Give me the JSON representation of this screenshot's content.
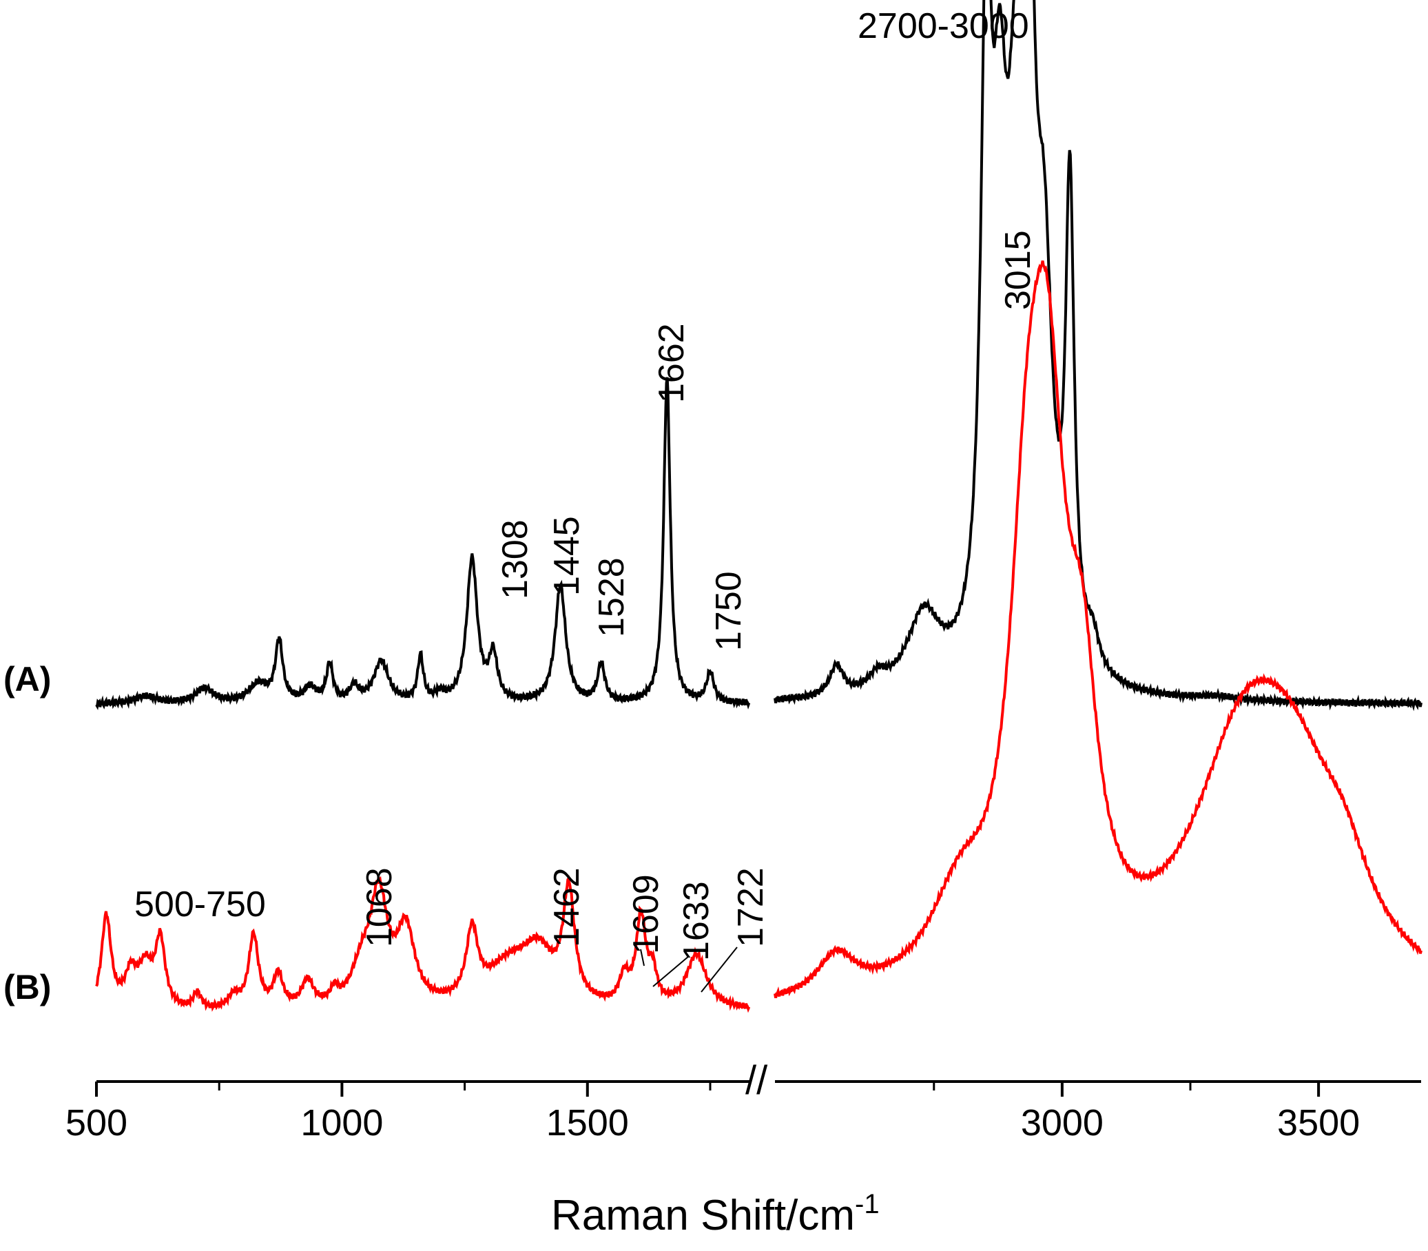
{
  "chart_data": {
    "type": "line",
    "title": "",
    "xlabel": "Raman Shift/cm",
    "xlabel_superscript": "-1",
    "ylabel": "",
    "x_segments": [
      {
        "xlim": [
          500,
          1830
        ]
      },
      {
        "xlim": [
          2440,
          3700
        ]
      }
    ],
    "x_ticks": [
      500,
      1000,
      1500,
      3000,
      3500
    ],
    "x_tick_labels": [
      "500",
      "1000",
      "1500",
      "3000",
      "3500"
    ],
    "minor_ticks": [
      750,
      1250,
      1750,
      2750,
      3250
    ],
    "axis_break": "//",
    "grid": false,
    "series": [
      {
        "name": "A",
        "label": "(A)",
        "color": "#000000",
        "baseline": 0,
        "peaks": [
          [
            600,
            0.01,
            30
          ],
          [
            720,
            0.02,
            22
          ],
          [
            830,
            0.025,
            25
          ],
          [
            872,
            0.08,
            9
          ],
          [
            935,
            0.02,
            15
          ],
          [
            975,
            0.05,
            8
          ],
          [
            1025,
            0.02,
            12
          ],
          [
            1080,
            0.055,
            18
          ],
          [
            1160,
            0.06,
            7
          ],
          [
            1200,
            0.01,
            12
          ],
          [
            1265,
            0.19,
            13
          ],
          [
            1308,
            0.06,
            10
          ],
          [
            1445,
            0.155,
            13
          ],
          [
            1528,
            0.05,
            9
          ],
          [
            1662,
            0.43,
            8
          ],
          [
            1750,
            0.04,
            9
          ],
          [
            2560,
            0.04,
            16
          ],
          [
            2640,
            0.02,
            20
          ],
          [
            2730,
            0.1,
            40
          ],
          [
            2852,
            0.8,
            12
          ],
          [
            2878,
            0.55,
            18
          ],
          [
            2910,
            0.55,
            20
          ],
          [
            2935,
            0.78,
            14
          ],
          [
            2965,
            0.45,
            20
          ],
          [
            3015,
            0.61,
            10
          ],
          [
            3060,
            0.04,
            15
          ],
          [
            3300,
            0.005,
            50
          ]
        ],
        "annotations": [
          "1308",
          "1445",
          "1528",
          "1662",
          "1750",
          "2700-3000",
          "3015"
        ]
      },
      {
        "name": "B",
        "label": "(B)",
        "color": "#ff0000",
        "baseline": 0,
        "peaks": [
          [
            520,
            0.14,
            12
          ],
          [
            570,
            0.05,
            15
          ],
          [
            600,
            0.06,
            18
          ],
          [
            630,
            0.1,
            12
          ],
          [
            705,
            0.025,
            10
          ],
          [
            780,
            0.02,
            15
          ],
          [
            820,
            0.11,
            12
          ],
          [
            870,
            0.05,
            12
          ],
          [
            930,
            0.04,
            15
          ],
          [
            985,
            0.02,
            10
          ],
          [
            1040,
            0.05,
            25
          ],
          [
            1075,
            0.16,
            22
          ],
          [
            1130,
            0.11,
            22
          ],
          [
            1265,
            0.1,
            14
          ],
          [
            1340,
            0.06,
            60
          ],
          [
            1400,
            0.07,
            40
          ],
          [
            1462,
            0.16,
            14
          ],
          [
            1575,
            0.04,
            12
          ],
          [
            1609,
            0.13,
            12
          ],
          [
            1633,
            0.045,
            10
          ],
          [
            1722,
            0.08,
            25
          ],
          [
            2560,
            0.06,
            45
          ],
          [
            2800,
            0.12,
            70
          ],
          [
            2930,
            0.45,
            40
          ],
          [
            2970,
            0.75,
            45
          ],
          [
            3040,
            0.3,
            35
          ],
          [
            3350,
            0.3,
            120
          ],
          [
            3450,
            0.25,
            120
          ],
          [
            3550,
            0.08,
            60
          ]
        ],
        "annotations": [
          "500-750",
          "1068",
          "1462",
          "1609",
          "1633",
          "1722"
        ]
      }
    ]
  }
}
